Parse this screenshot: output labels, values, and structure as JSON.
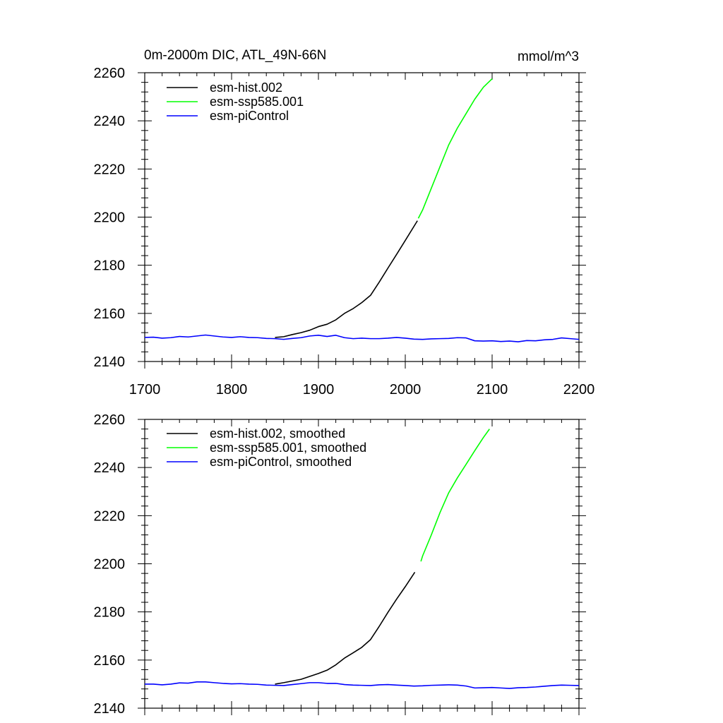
{
  "colors": {
    "hist": "#000000",
    "ssp": "#00ff00",
    "pi": "#0000ff",
    "axis": "#000000",
    "background": "#ffffff"
  },
  "chart_data": [
    {
      "type": "line",
      "title": "0m-2000m DIC, ATL_49N-66N",
      "units": "mmol/m^3",
      "xlim": [
        1700,
        2200
      ],
      "ylim": [
        2140,
        2260
      ],
      "xticks": [
        1700,
        1800,
        1900,
        2000,
        2100,
        2200
      ],
      "xtick_labels": [
        "1700",
        "1800",
        "1900",
        "2000",
        "2100",
        "2200"
      ],
      "yticks": [
        2140,
        2160,
        2180,
        2200,
        2220,
        2240,
        2260
      ],
      "ytick_labels": [
        "2140",
        "2160",
        "2180",
        "2200",
        "2220",
        "2240",
        "2260"
      ],
      "legend_position": "top-left",
      "grid": false,
      "series": [
        {
          "name": "esm-hist.002",
          "color": "#000000",
          "x": [
            1850,
            1860,
            1870,
            1880,
            1890,
            1900,
            1910,
            1920,
            1930,
            1940,
            1950,
            1960,
            1970,
            1980,
            1990,
            2000,
            2014
          ],
          "y": [
            2150,
            2150.3,
            2151.2,
            2152,
            2153,
            2154.5,
            2155.5,
            2157.3,
            2160,
            2162,
            2164.5,
            2167.5,
            2173,
            2178.8,
            2184.5,
            2190.3,
            2198.5
          ]
        },
        {
          "name": "esm-ssp585.001",
          "color": "#00ff00",
          "x": [
            2015,
            2020,
            2030,
            2040,
            2050,
            2060,
            2070,
            2080,
            2090,
            2100
          ],
          "y": [
            2199.5,
            2203,
            2212,
            2221,
            2230,
            2237,
            2243,
            2249,
            2254,
            2257.5
          ]
        },
        {
          "name": "esm-piControl",
          "color": "#0000ff",
          "x": [
            1700,
            1710,
            1720,
            1730,
            1740,
            1750,
            1760,
            1770,
            1780,
            1790,
            1800,
            1810,
            1820,
            1830,
            1840,
            1850,
            1860,
            1870,
            1880,
            1890,
            1900,
            1910,
            1920,
            1930,
            1940,
            1950,
            1960,
            1970,
            1980,
            1990,
            2000,
            2010,
            2020,
            2030,
            2040,
            2050,
            2060,
            2070,
            2080,
            2090,
            2100,
            2110,
            2120,
            2130,
            2140,
            2150,
            2160,
            2170,
            2180,
            2190,
            2200
          ],
          "y": [
            2150,
            2150.1,
            2149.7,
            2149.9,
            2150.4,
            2150.2,
            2150.6,
            2151,
            2150.6,
            2150.2,
            2150,
            2150.3,
            2150,
            2149.9,
            2149.6,
            2149.5,
            2149.2,
            2149.6,
            2149.9,
            2150.6,
            2150.9,
            2150.4,
            2150.9,
            2149.9,
            2149.5,
            2149.7,
            2149.5,
            2149.5,
            2149.7,
            2150,
            2149.7,
            2149.3,
            2149.2,
            2149.4,
            2149.5,
            2149.6,
            2149.9,
            2149.8,
            2148.6,
            2148.5,
            2148.6,
            2148.3,
            2148.5,
            2148.2,
            2148.7,
            2148.6,
            2149,
            2149.2,
            2149.8,
            2149.5,
            2149.2
          ]
        }
      ]
    },
    {
      "type": "line",
      "xlim": [
        1700,
        2200
      ],
      "ylim": [
        2140,
        2260
      ],
      "xticks": [
        1700,
        1800,
        1900,
        2000,
        2100,
        2200
      ],
      "yticks": [
        2140,
        2160,
        2180,
        2200,
        2220,
        2240,
        2260
      ],
      "ytick_labels": [
        "2140",
        "2160",
        "2180",
        "2200",
        "2220",
        "2240",
        "2260"
      ],
      "legend_position": "top-left",
      "grid": false,
      "series": [
        {
          "name": "esm-hist.002, smoothed",
          "color": "#000000",
          "x": [
            1850,
            1860,
            1870,
            1880,
            1890,
            1900,
            1910,
            1920,
            1930,
            1940,
            1950,
            1960,
            1970,
            1980,
            1990,
            2000,
            2011
          ],
          "y": [
            2150,
            2150.6,
            2151.3,
            2152,
            2153.2,
            2154.4,
            2155.8,
            2158,
            2160.8,
            2163,
            2165.3,
            2168.5,
            2174,
            2179.8,
            2185.3,
            2190.5,
            2196.5
          ]
        },
        {
          "name": "esm-ssp585.001, smoothed",
          "color": "#00ff00",
          "x": [
            2018,
            2020,
            2030,
            2040,
            2050,
            2060,
            2070,
            2080,
            2090,
            2097
          ],
          "y": [
            2201,
            2203.3,
            2212,
            2221.3,
            2229.5,
            2235.7,
            2241.3,
            2247,
            2252.5,
            2256
          ]
        },
        {
          "name": "esm-piControl, smoothed",
          "color": "#0000ff",
          "x": [
            1700,
            1710,
            1720,
            1730,
            1740,
            1750,
            1760,
            1770,
            1780,
            1790,
            1800,
            1810,
            1820,
            1830,
            1840,
            1850,
            1860,
            1870,
            1880,
            1890,
            1900,
            1910,
            1920,
            1930,
            1940,
            1950,
            1960,
            1970,
            1980,
            1990,
            2000,
            2010,
            2020,
            2030,
            2040,
            2050,
            2060,
            2070,
            2080,
            2090,
            2100,
            2110,
            2120,
            2130,
            2140,
            2150,
            2160,
            2170,
            2180,
            2190,
            2200
          ],
          "y": [
            2150,
            2150,
            2149.7,
            2150,
            2150.5,
            2150.4,
            2150.9,
            2150.9,
            2150.6,
            2150.3,
            2150.1,
            2150.2,
            2150,
            2149.9,
            2149.6,
            2149.5,
            2149.4,
            2149.8,
            2150.2,
            2150.6,
            2150.6,
            2150.3,
            2150.3,
            2149.8,
            2149.6,
            2149.5,
            2149.4,
            2149.7,
            2149.8,
            2149.6,
            2149.4,
            2149.2,
            2149.3,
            2149.5,
            2149.6,
            2149.7,
            2149.6,
            2149.2,
            2148.4,
            2148.5,
            2148.6,
            2148.4,
            2148.2,
            2148.5,
            2148.6,
            2148.8,
            2149.1,
            2149.4,
            2149.6,
            2149.5,
            2149.4
          ]
        }
      ]
    }
  ]
}
